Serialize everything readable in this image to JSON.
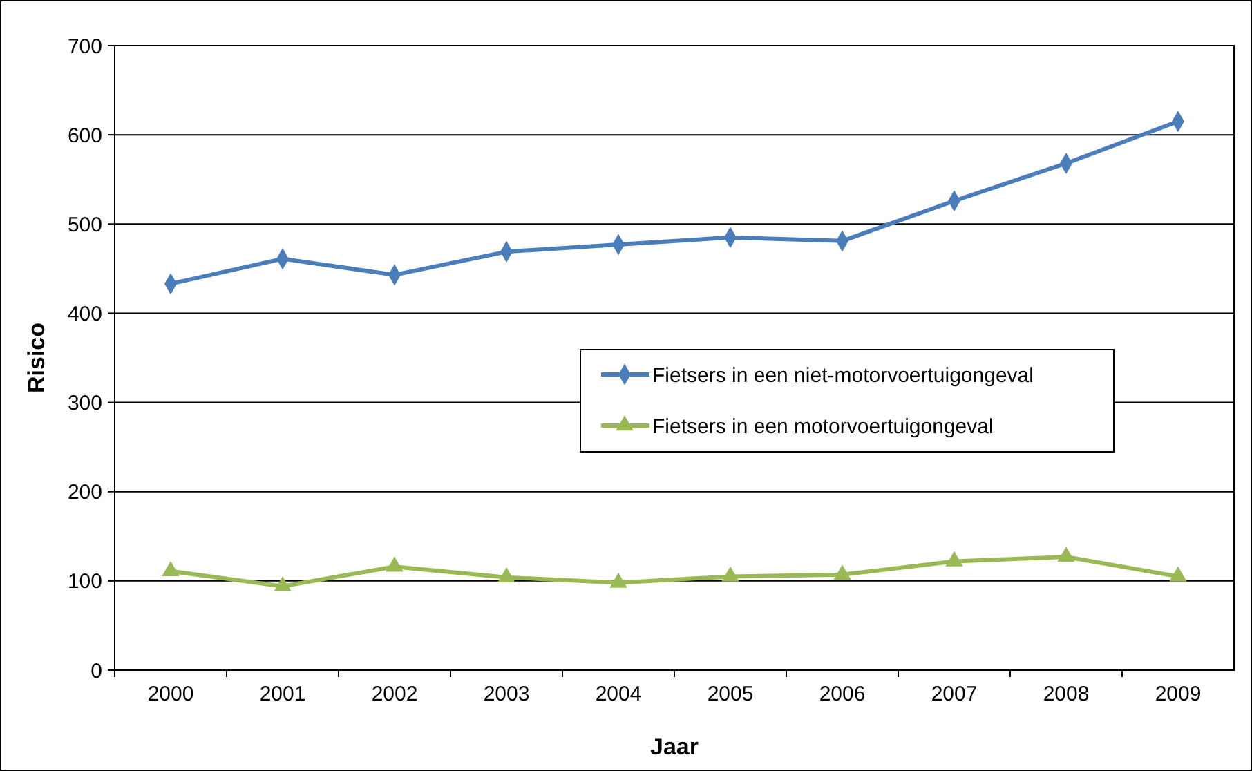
{
  "chart_data": {
    "type": "line",
    "xlabel": "Jaar",
    "ylabel": "Risico",
    "categories": [
      "2000",
      "2001",
      "2002",
      "2003",
      "2004",
      "2005",
      "2006",
      "2007",
      "2008",
      "2009"
    ],
    "series": [
      {
        "name": "Fietsers in een niet-motorvoertuigongeval",
        "color": "#4a7ebb",
        "marker": "diamond",
        "values": [
          433,
          461,
          443,
          469,
          477,
          485,
          481,
          526,
          568,
          615
        ]
      },
      {
        "name": "Fietsers in een motorvoertuigongeval",
        "color": "#98b954",
        "marker": "triangle",
        "values": [
          111,
          94,
          116,
          104,
          98,
          105,
          107,
          122,
          127,
          105
        ]
      }
    ],
    "ylim": [
      0,
      700
    ],
    "yticks": [
      0,
      100,
      200,
      300,
      400,
      500,
      600,
      700
    ],
    "grid": "y",
    "legend": "right",
    "line_style": "solid"
  }
}
